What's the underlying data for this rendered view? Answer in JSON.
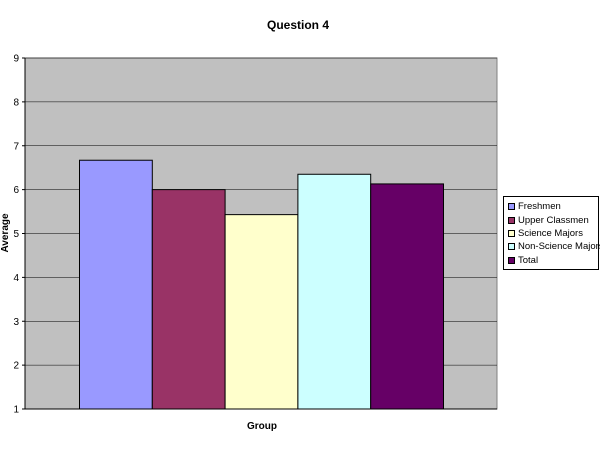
{
  "chart_data": {
    "type": "bar",
    "title": "Question 4",
    "xlabel": "Group",
    "ylabel": "Average",
    "ylim": [
      1,
      9
    ],
    "yticks": [
      1,
      2,
      3,
      4,
      5,
      6,
      7,
      8,
      9
    ],
    "grid": true,
    "plot_background": "#c0c0c0",
    "legend_position": "right",
    "series": [
      {
        "name": "Freshmen",
        "value": 6.67,
        "color": "#9999ff"
      },
      {
        "name": "Upper Classmen",
        "value": 6.0,
        "color": "#993366"
      },
      {
        "name": "Science Majors",
        "value": 5.43,
        "color": "#ffffcc"
      },
      {
        "name": "Non-Science Majors",
        "value": 6.35,
        "color": "#ccffff"
      },
      {
        "name": "Total",
        "value": 6.13,
        "color": "#660066"
      }
    ]
  }
}
